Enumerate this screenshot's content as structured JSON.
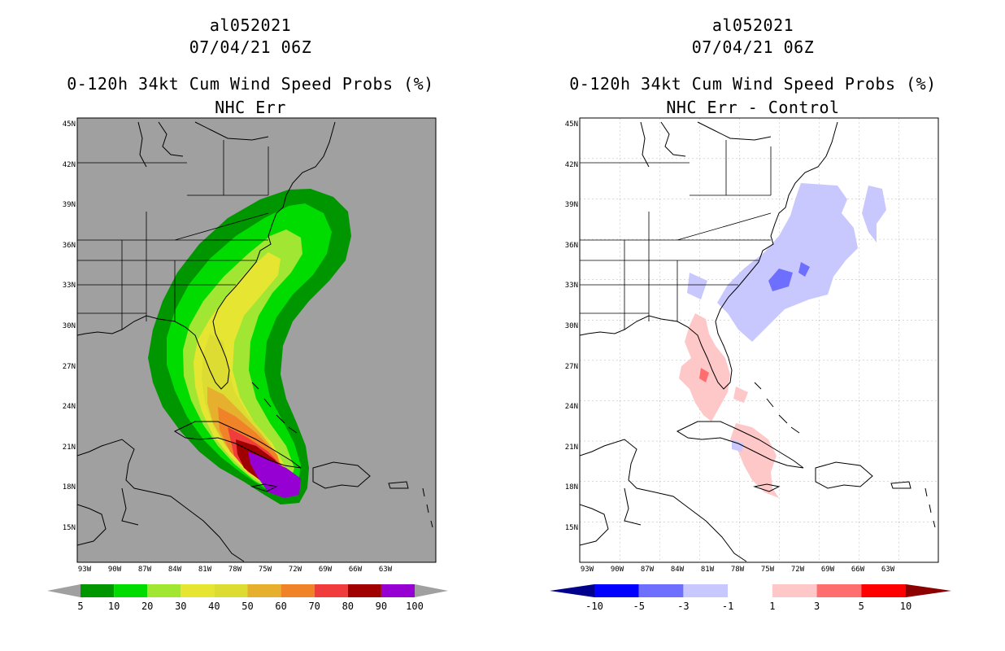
{
  "left_panel": {
    "storm_id": "al052021",
    "datetime": "07/04/21 06Z",
    "product": "0-120h 34kt Cum Wind Speed Probs (%)",
    "subtitle": "NHC Err",
    "background_color": "#a0a0a0",
    "colorbar": {
      "labels": [
        "5",
        "10",
        "20",
        "30",
        "40",
        "50",
        "60",
        "70",
        "80",
        "90",
        "100"
      ],
      "colors": [
        "#009600",
        "#00dc00",
        "#a0e632",
        "#e6e632",
        "#dcdc32",
        "#e6af2d",
        "#f08228",
        "#f03c3c",
        "#a00000",
        "#9600d2"
      ]
    }
  },
  "right_panel": {
    "storm_id": "al052021",
    "datetime": "07/04/21 06Z",
    "product": "0-120h 34kt Cum Wind Speed Probs (%)",
    "subtitle": "NHC Err - Control",
    "background_color": "#ffffff",
    "colorbar": {
      "labels": [
        "-10",
        "-5",
        "-3",
        "-1",
        "1",
        "3",
        "5",
        "10"
      ],
      "colors": [
        "#00008c",
        "#0000ff",
        "#6e6eff",
        "#c8c8ff",
        "#ffffff",
        "#ffc8c8",
        "#ff6e6e",
        "#ff0000",
        "#8c0000"
      ]
    }
  },
  "axes": {
    "lat_labels": [
      "45N",
      "42N",
      "39N",
      "36N",
      "33N",
      "30N",
      "27N",
      "24N",
      "21N",
      "18N",
      "15N"
    ],
    "lon_labels": [
      "93W",
      "90W",
      "87W",
      "84W",
      "81W",
      "78W",
      "75W",
      "72W",
      "69W",
      "66W",
      "63W"
    ]
  }
}
